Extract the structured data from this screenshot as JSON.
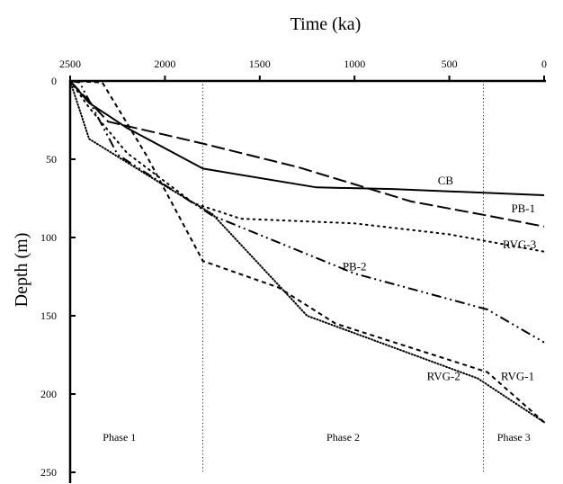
{
  "chart_data": {
    "type": "line",
    "xlabel": "Time (ka)",
    "ylabel": "Depth (m)",
    "x_axis_position": "top",
    "x_reversed": true,
    "y_reversed": true,
    "xlim": [
      2500,
      0
    ],
    "ylim": [
      0,
      250
    ],
    "xticks": [
      2500,
      2000,
      1500,
      1000,
      500,
      0
    ],
    "yticks": [
      0,
      50,
      100,
      150,
      200,
      250
    ],
    "grid": false,
    "phase_boundaries": [
      1800,
      320
    ],
    "phases": [
      {
        "label": "Phase 1",
        "center_ka": 2240,
        "depth": 230
      },
      {
        "label": "Phase 2",
        "center_ka": 1060,
        "depth": 230
      },
      {
        "label": "Phase 3",
        "center_ka": 160,
        "depth": 230
      }
    ],
    "series": [
      {
        "name": "CB",
        "dash": "solid",
        "label_pos": [
          520,
          66
        ],
        "points": [
          [
            2500,
            0
          ],
          [
            2400,
            14
          ],
          [
            2200,
            30
          ],
          [
            1800,
            56
          ],
          [
            1200,
            68
          ],
          [
            800,
            69
          ],
          [
            0,
            73
          ]
        ]
      },
      {
        "name": "PB-1",
        "dash": "longdash",
        "label_pos": [
          110,
          84
        ],
        "points": [
          [
            2500,
            0
          ],
          [
            2300,
            26
          ],
          [
            1800,
            40
          ],
          [
            1300,
            55
          ],
          [
            700,
            77
          ],
          [
            300,
            86
          ],
          [
            0,
            93
          ]
        ]
      },
      {
        "name": "RVG-3",
        "dash": "dotted",
        "label_pos": [
          130,
          107
        ],
        "points": [
          [
            2500,
            0
          ],
          [
            2400,
            17
          ],
          [
            2200,
            46
          ],
          [
            1850,
            78
          ],
          [
            1600,
            88
          ],
          [
            1000,
            91
          ],
          [
            500,
            98
          ],
          [
            0,
            109
          ]
        ]
      },
      {
        "name": "PB-2",
        "dash": "dashdotdot",
        "label_pos": [
          1000,
          121
        ],
        "points": [
          [
            2500,
            0
          ],
          [
            2450,
            1
          ],
          [
            2250,
            47
          ],
          [
            1750,
            86
          ],
          [
            1000,
            123
          ],
          [
            300,
            146
          ],
          [
            0,
            167
          ]
        ]
      },
      {
        "name": "RVG-1",
        "dash": "dashed",
        "label_pos": [
          140,
          191
        ],
        "points": [
          [
            2500,
            0
          ],
          [
            2330,
            1
          ],
          [
            2100,
            47
          ],
          [
            1800,
            115
          ],
          [
            1400,
            132
          ],
          [
            1100,
            155
          ],
          [
            300,
            186
          ],
          [
            0,
            218
          ]
        ]
      },
      {
        "name": "RVG-2",
        "dash": "densedot",
        "label_pos": [
          530,
          191
        ],
        "points": [
          [
            2500,
            0
          ],
          [
            2400,
            37
          ],
          [
            2000,
            67
          ],
          [
            1750,
            85
          ],
          [
            1250,
            150
          ],
          [
            350,
            190
          ],
          [
            0,
            218
          ]
        ]
      }
    ]
  }
}
